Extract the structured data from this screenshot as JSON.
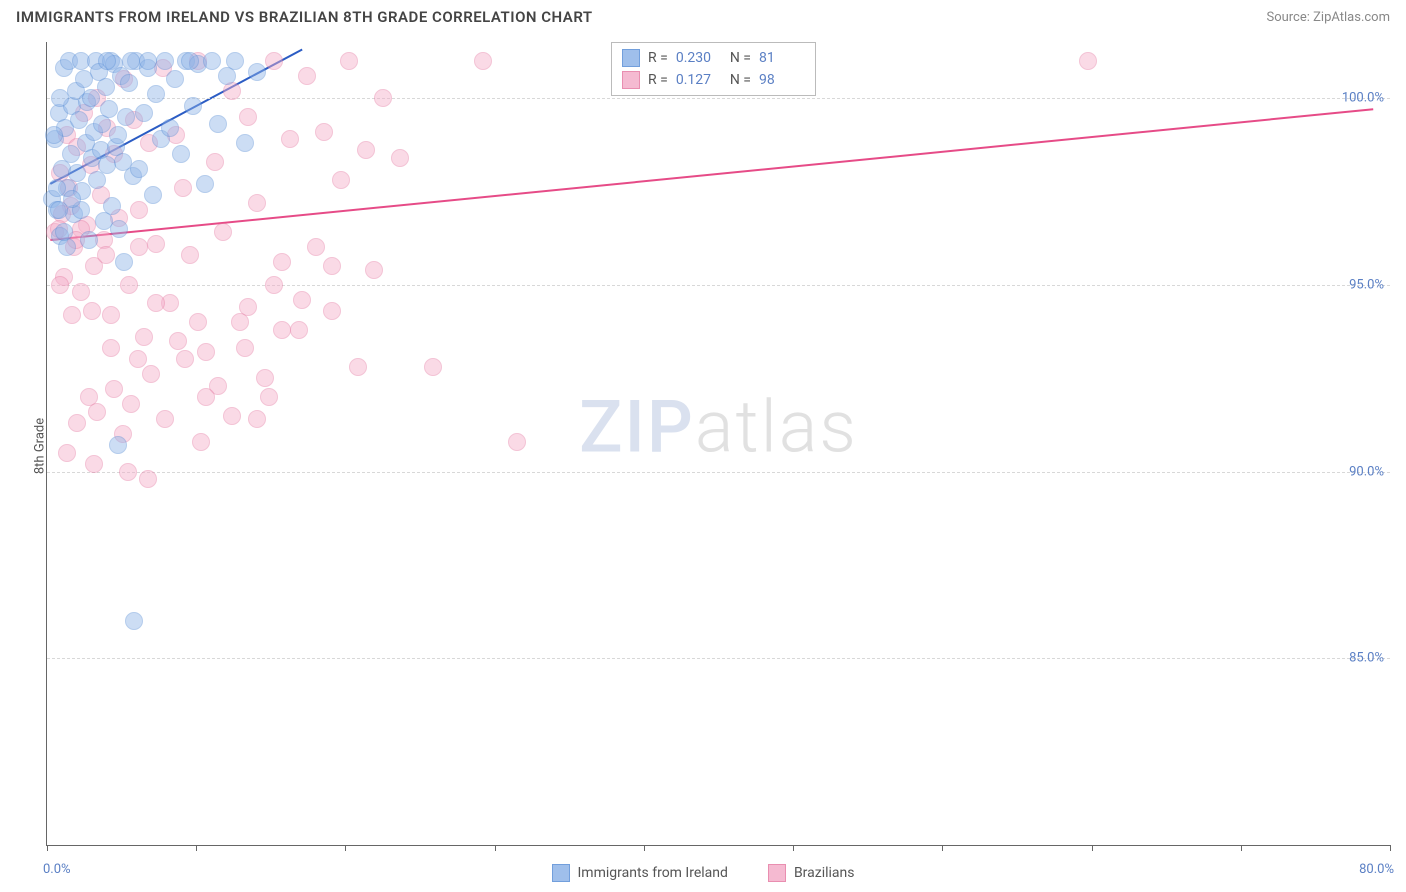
{
  "title": "IMMIGRANTS FROM IRELAND VS BRAZILIAN 8TH GRADE CORRELATION CHART",
  "source": "Source: ZipAtlas.com",
  "ylabel": "8th Grade",
  "watermark": {
    "part1": "ZIP",
    "part2": "atlas"
  },
  "chart": {
    "type": "scatter",
    "xlim": [
      0,
      80
    ],
    "ylim": [
      80,
      101.5
    ],
    "x_unit": "%",
    "y_unit": "%",
    "xtick_positions": [
      0,
      8.89,
      17.78,
      26.67,
      35.56,
      44.44,
      53.33,
      62.22,
      71.11,
      80
    ],
    "x_axis_min_label": "0.0%",
    "x_axis_max_label": "80.0%",
    "y_gridlines": [
      85.0,
      90.0,
      95.0,
      100.0
    ],
    "y_tick_labels": [
      "85.0%",
      "90.0%",
      "95.0%",
      "100.0%"
    ],
    "grid_color": "#d8d8d8",
    "axis_color": "#666666",
    "background_color": "#ffffff",
    "marker_radius": 9,
    "marker_opacity": 0.45,
    "marker_stroke_opacity": 0.85,
    "trend_line_width": 2
  },
  "series": [
    {
      "id": "ireland",
      "label": "Immigrants from Ireland",
      "fill_color": "#8fb4e8",
      "stroke_color": "#5a8fd6",
      "trend_color": "#2b5cc4",
      "R": "0.230",
      "N": "81",
      "trend": {
        "x1": 0.2,
        "y1": 97.7,
        "x2": 15.2,
        "y2": 101.3
      },
      "points": [
        [
          0.3,
          97.3
        ],
        [
          0.5,
          98.9
        ],
        [
          0.6,
          97.0
        ],
        [
          0.7,
          99.6
        ],
        [
          0.8,
          96.3
        ],
        [
          0.9,
          98.1
        ],
        [
          1.0,
          100.8
        ],
        [
          1.1,
          99.2
        ],
        [
          1.2,
          97.6
        ],
        [
          1.3,
          101.0
        ],
        [
          1.4,
          98.5
        ],
        [
          1.5,
          99.8
        ],
        [
          1.6,
          96.9
        ],
        [
          1.7,
          100.2
        ],
        [
          1.8,
          98.0
        ],
        [
          1.9,
          99.4
        ],
        [
          2.0,
          101.0
        ],
        [
          2.1,
          97.5
        ],
        [
          2.2,
          100.5
        ],
        [
          2.3,
          98.8
        ],
        [
          2.4,
          99.9
        ],
        [
          2.5,
          96.2
        ],
        [
          2.6,
          100.0
        ],
        [
          2.7,
          98.4
        ],
        [
          2.8,
          99.1
        ],
        [
          2.9,
          101.0
        ],
        [
          3.0,
          97.8
        ],
        [
          3.1,
          100.7
        ],
        [
          3.2,
          98.6
        ],
        [
          3.3,
          99.3
        ],
        [
          3.4,
          96.7
        ],
        [
          3.5,
          100.3
        ],
        [
          3.6,
          98.2
        ],
        [
          3.7,
          99.7
        ],
        [
          3.8,
          101.0
        ],
        [
          3.9,
          97.1
        ],
        [
          4.0,
          100.9
        ],
        [
          4.1,
          98.7
        ],
        [
          4.2,
          99.0
        ],
        [
          4.3,
          96.5
        ],
        [
          4.4,
          100.6
        ],
        [
          4.5,
          98.3
        ],
        [
          4.7,
          99.5
        ],
        [
          4.9,
          100.4
        ],
        [
          5.1,
          97.9
        ],
        [
          5.3,
          101.0
        ],
        [
          5.5,
          98.1
        ],
        [
          5.8,
          99.6
        ],
        [
          6.0,
          100.8
        ],
        [
          6.3,
          97.4
        ],
        [
          6.5,
          100.1
        ],
        [
          6.8,
          98.9
        ],
        [
          7.0,
          101.0
        ],
        [
          7.3,
          99.2
        ],
        [
          7.6,
          100.5
        ],
        [
          8.0,
          98.5
        ],
        [
          8.3,
          101.0
        ],
        [
          8.7,
          99.8
        ],
        [
          9.0,
          100.9
        ],
        [
          9.4,
          97.7
        ],
        [
          9.8,
          101.0
        ],
        [
          10.2,
          99.3
        ],
        [
          10.7,
          100.6
        ],
        [
          11.2,
          101.0
        ],
        [
          11.8,
          98.8
        ],
        [
          12.5,
          100.7
        ],
        [
          4.6,
          95.6
        ],
        [
          2.0,
          97.0
        ],
        [
          1.2,
          96.0
        ],
        [
          0.6,
          97.6
        ],
        [
          0.7,
          97.0
        ],
        [
          1.0,
          96.4
        ],
        [
          1.5,
          97.3
        ],
        [
          3.6,
          101.0
        ],
        [
          5.0,
          101.0
        ],
        [
          6.0,
          101.0
        ],
        [
          8.5,
          101.0
        ],
        [
          4.2,
          90.7
        ],
        [
          0.4,
          99.0
        ],
        [
          0.8,
          100.0
        ],
        [
          5.2,
          86.0
        ]
      ]
    },
    {
      "id": "brazilians",
      "label": "Brazilians",
      "fill_color": "#f4aeca",
      "stroke_color": "#e67ba3",
      "trend_color": "#e64b87",
      "R": "0.127",
      "N": "98",
      "trend": {
        "x1": 0.2,
        "y1": 96.2,
        "x2": 79.0,
        "y2": 99.7
      },
      "points": [
        [
          0.5,
          96.4
        ],
        [
          0.8,
          98.0
        ],
        [
          1.0,
          95.2
        ],
        [
          1.2,
          99.0
        ],
        [
          1.4,
          97.1
        ],
        [
          1.6,
          96.0
        ],
        [
          1.8,
          98.7
        ],
        [
          2.0,
          94.8
        ],
        [
          2.2,
          99.6
        ],
        [
          2.4,
          96.6
        ],
        [
          2.6,
          98.2
        ],
        [
          2.8,
          95.5
        ],
        [
          3.0,
          100.0
        ],
        [
          3.2,
          97.4
        ],
        [
          3.4,
          96.2
        ],
        [
          3.6,
          99.2
        ],
        [
          3.8,
          94.2
        ],
        [
          4.0,
          98.5
        ],
        [
          4.3,
          96.8
        ],
        [
          4.6,
          100.5
        ],
        [
          4.9,
          95.0
        ],
        [
          5.2,
          99.4
        ],
        [
          5.5,
          97.0
        ],
        [
          5.8,
          93.6
        ],
        [
          6.1,
          98.8
        ],
        [
          6.5,
          96.1
        ],
        [
          6.9,
          100.8
        ],
        [
          7.3,
          94.5
        ],
        [
          7.7,
          99.0
        ],
        [
          8.1,
          97.6
        ],
        [
          8.5,
          95.8
        ],
        [
          9.0,
          101.0
        ],
        [
          9.5,
          93.2
        ],
        [
          10.0,
          98.3
        ],
        [
          10.5,
          96.4
        ],
        [
          11.0,
          100.2
        ],
        [
          11.5,
          94.0
        ],
        [
          12.0,
          99.5
        ],
        [
          12.5,
          97.2
        ],
        [
          13.0,
          92.5
        ],
        [
          13.5,
          101.0
        ],
        [
          14.0,
          95.6
        ],
        [
          14.5,
          98.9
        ],
        [
          15.0,
          93.8
        ],
        [
          15.5,
          100.6
        ],
        [
          16.0,
          96.0
        ],
        [
          16.5,
          99.1
        ],
        [
          17.0,
          94.3
        ],
        [
          17.5,
          97.8
        ],
        [
          18.0,
          101.0
        ],
        [
          18.5,
          92.8
        ],
        [
          19.0,
          98.6
        ],
        [
          19.5,
          95.4
        ],
        [
          20.0,
          100.0
        ],
        [
          4.0,
          92.2
        ],
        [
          5.0,
          91.8
        ],
        [
          6.2,
          92.6
        ],
        [
          7.0,
          91.4
        ],
        [
          8.2,
          93.0
        ],
        [
          3.0,
          91.6
        ],
        [
          2.5,
          92.0
        ],
        [
          1.8,
          91.3
        ],
        [
          1.2,
          90.5
        ],
        [
          2.8,
          90.2
        ],
        [
          4.5,
          91.0
        ],
        [
          9.2,
          90.8
        ],
        [
          10.2,
          92.3
        ],
        [
          11.8,
          93.3
        ],
        [
          13.2,
          92.0
        ],
        [
          6.5,
          94.5
        ],
        [
          7.8,
          93.5
        ],
        [
          9.0,
          94.0
        ],
        [
          12.0,
          94.4
        ],
        [
          13.5,
          95.0
        ],
        [
          2.0,
          96.5
        ],
        [
          3.5,
          95.8
        ],
        [
          5.5,
          96.0
        ],
        [
          0.8,
          95.0
        ],
        [
          1.5,
          94.2
        ],
        [
          21.0,
          98.4
        ],
        [
          26.0,
          101.0
        ],
        [
          23.0,
          92.8
        ],
        [
          9.5,
          92.0
        ],
        [
          11.0,
          91.5
        ],
        [
          12.5,
          91.4
        ],
        [
          14.0,
          93.8
        ],
        [
          15.2,
          94.6
        ],
        [
          17.0,
          95.5
        ],
        [
          6.0,
          89.8
        ],
        [
          4.8,
          90.0
        ],
        [
          2.7,
          94.3
        ],
        [
          3.8,
          93.3
        ],
        [
          5.4,
          93.0
        ],
        [
          28.0,
          90.8
        ],
        [
          62.0,
          101.0
        ],
        [
          1.3,
          97.6
        ],
        [
          0.9,
          96.9
        ],
        [
          1.7,
          96.2
        ],
        [
          0.7,
          96.5
        ]
      ]
    }
  ],
  "stats_legend": {
    "R_label": "R =",
    "N_label": "N =",
    "label_color": "#555555",
    "value_color": "#5a7fc4",
    "border_color": "#bbbbbb"
  },
  "axis_label_color": "#5a7fc4"
}
